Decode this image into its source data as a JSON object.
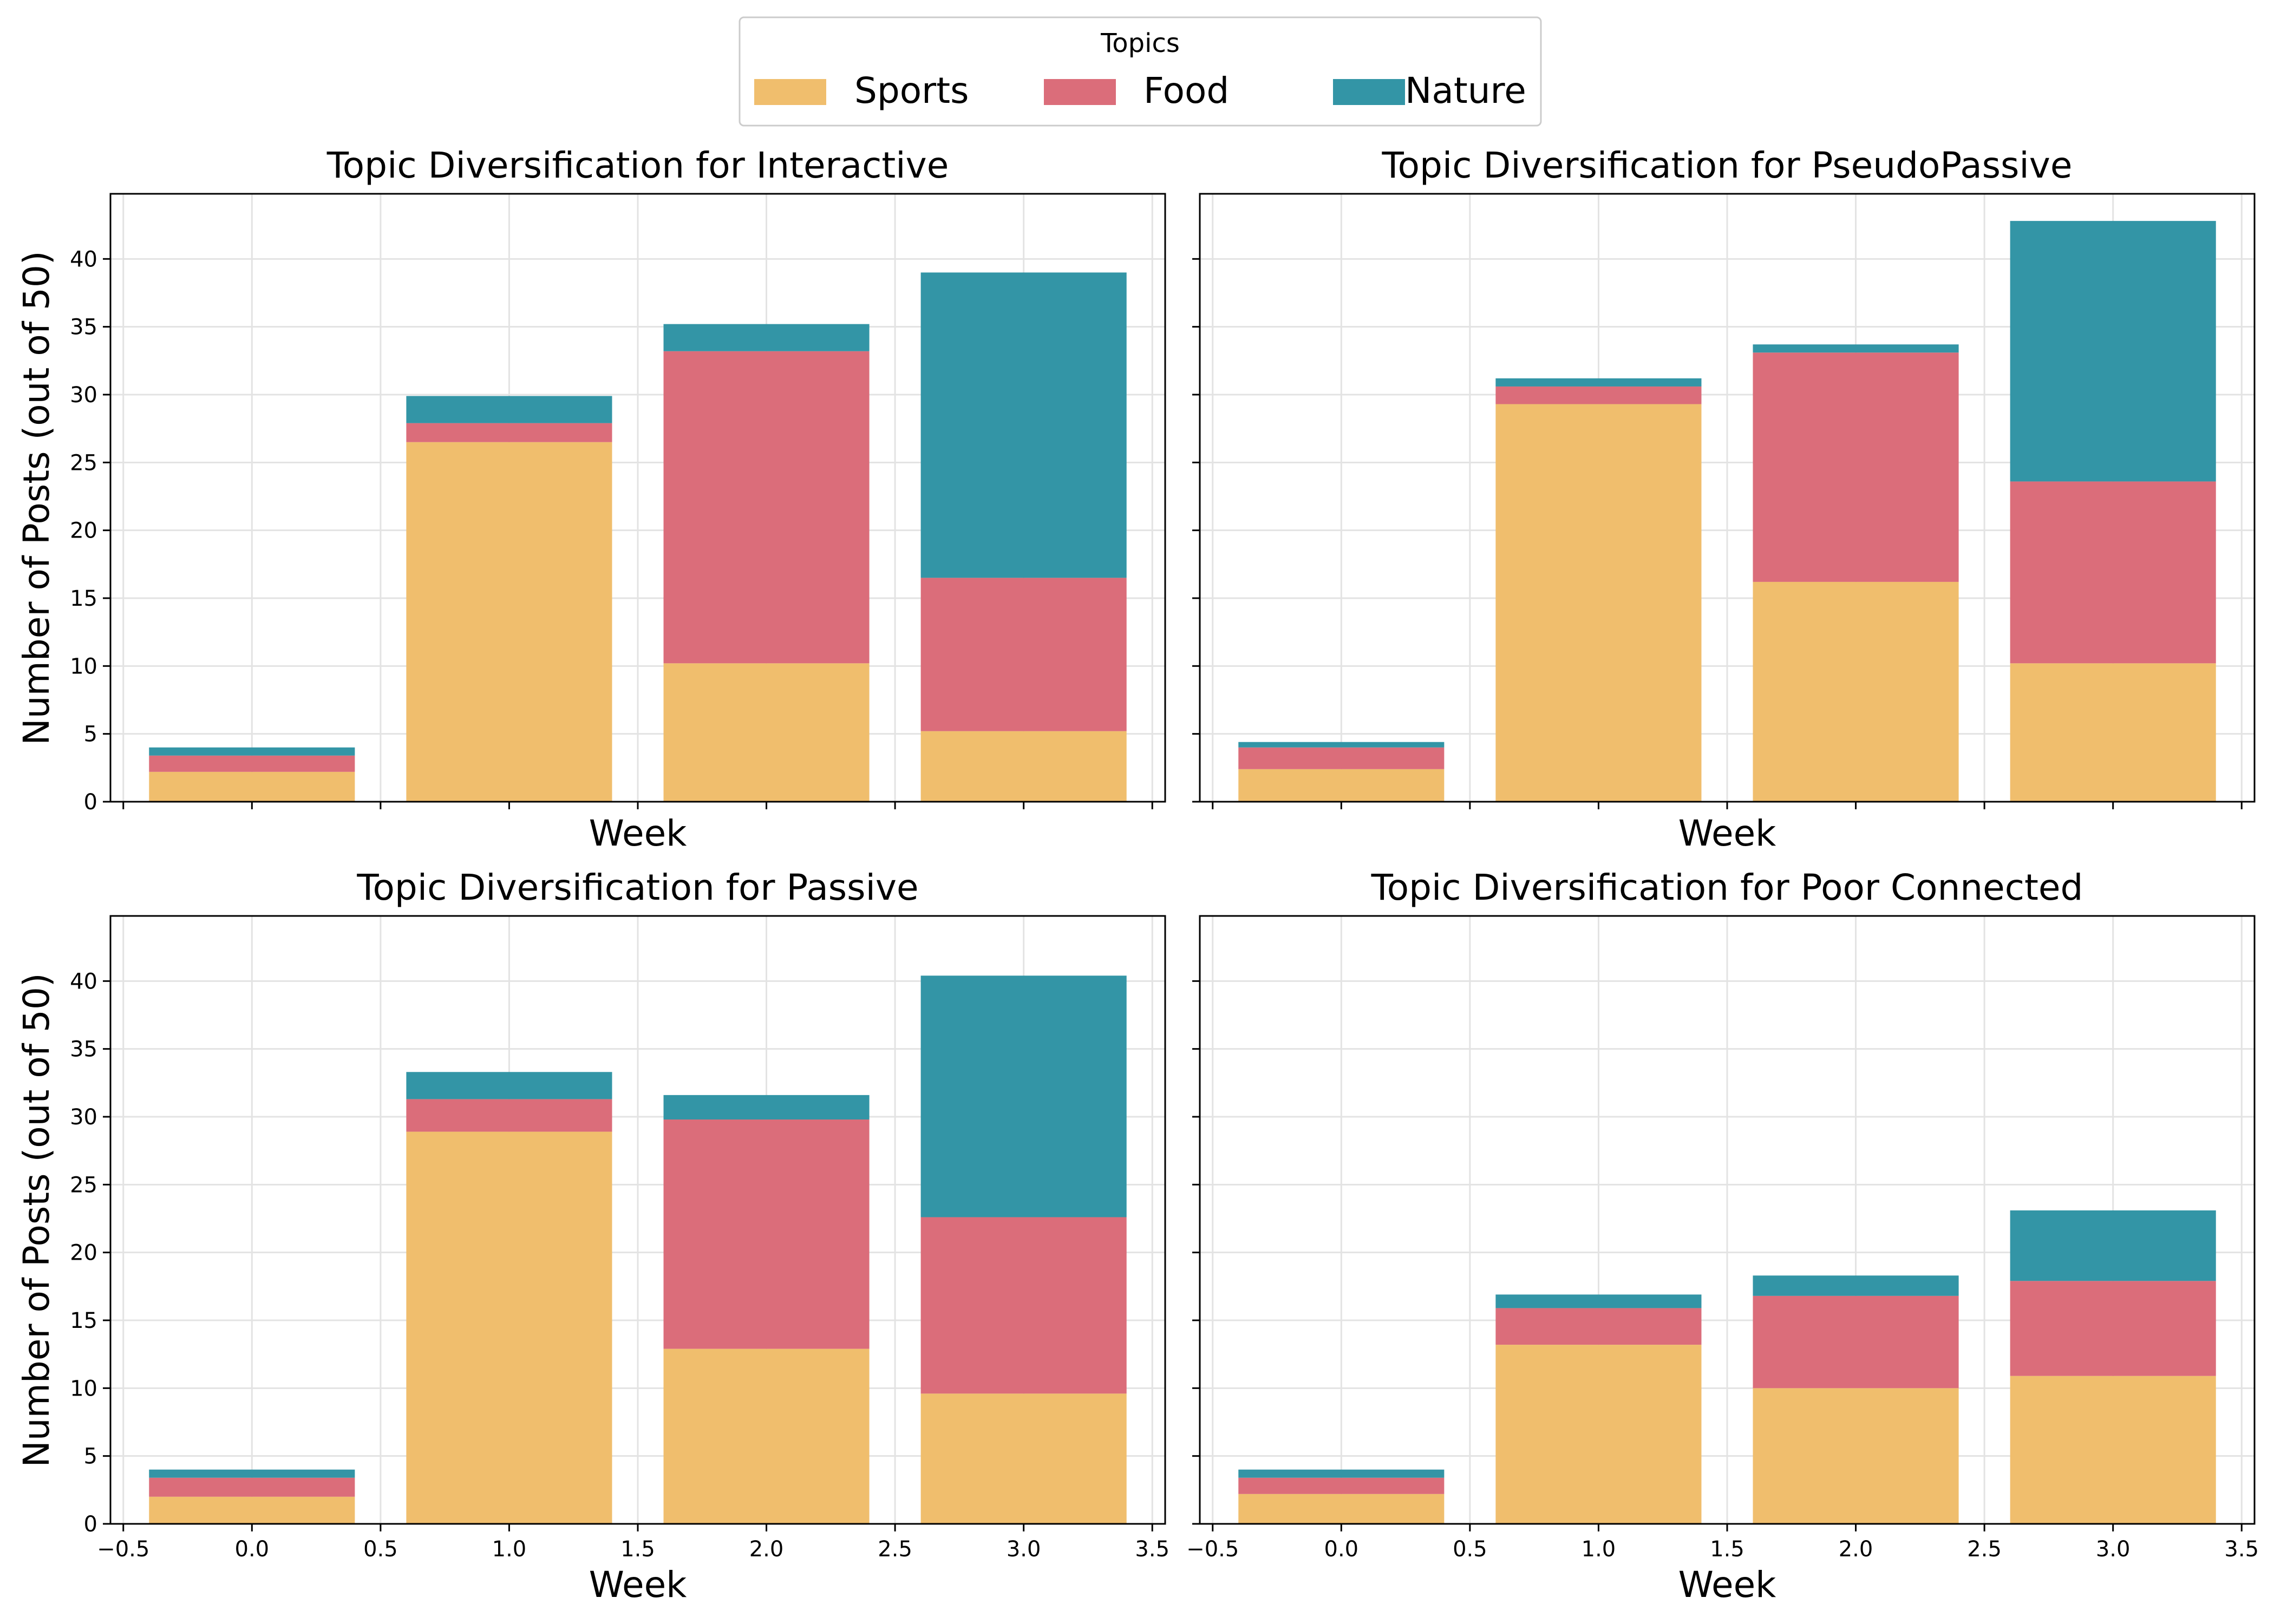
{
  "legend": {
    "title": "Topics",
    "entries": [
      {
        "label": "Sports",
        "color": "#f0be6d"
      },
      {
        "label": "Food",
        "color": "#db6d7a"
      },
      {
        "label": "Nature",
        "color": "#3395a6"
      }
    ]
  },
  "chart_data": [
    {
      "type": "bar",
      "stacked": true,
      "title": "Topic Diversification for Interactive",
      "xlabel": "Week",
      "ylabel": "Number of Posts (out of 50)",
      "x": [
        0,
        1,
        2,
        3
      ],
      "xlim": [
        -0.55,
        3.55
      ],
      "ylim": [
        0,
        44.8
      ],
      "xticks": [
        "−0.5",
        "0.0",
        "0.5",
        "1.0",
        "1.5",
        "2.0",
        "2.5",
        "3.0",
        "3.5"
      ],
      "yticks": [
        "0",
        "5",
        "10",
        "15",
        "20",
        "25",
        "30",
        "35",
        "40"
      ],
      "grid": true,
      "series": [
        {
          "name": "Sports",
          "values": [
            2.2,
            26.5,
            10.2,
            5.2
          ]
        },
        {
          "name": "Food",
          "values": [
            1.2,
            1.4,
            23.0,
            11.3
          ]
        },
        {
          "name": "Nature",
          "values": [
            0.6,
            2.0,
            2.0,
            22.5
          ]
        }
      ]
    },
    {
      "type": "bar",
      "stacked": true,
      "title": "Topic Diversification for PseudoPassive",
      "xlabel": "Week",
      "ylabel": "",
      "x": [
        0,
        1,
        2,
        3
      ],
      "xlim": [
        -0.55,
        3.55
      ],
      "ylim": [
        0,
        44.8
      ],
      "xticks": [
        "−0.5",
        "0.0",
        "0.5",
        "1.0",
        "1.5",
        "2.0",
        "2.5",
        "3.0",
        "3.5"
      ],
      "yticks": [
        "0",
        "5",
        "10",
        "15",
        "20",
        "25",
        "30",
        "35",
        "40"
      ],
      "grid": true,
      "series": [
        {
          "name": "Sports",
          "values": [
            2.4,
            29.3,
            16.2,
            10.2
          ]
        },
        {
          "name": "Food",
          "values": [
            1.6,
            1.3,
            16.9,
            13.4
          ]
        },
        {
          "name": "Nature",
          "values": [
            0.4,
            0.6,
            0.6,
            19.2
          ]
        }
      ]
    },
    {
      "type": "bar",
      "stacked": true,
      "title": "Topic Diversification for Passive",
      "xlabel": "Week",
      "ylabel": "Number of Posts (out of 50)",
      "x": [
        0,
        1,
        2,
        3
      ],
      "xlim": [
        -0.55,
        3.55
      ],
      "ylim": [
        0,
        44.8
      ],
      "xticks": [
        "−0.5",
        "0.0",
        "0.5",
        "1.0",
        "1.5",
        "2.0",
        "2.5",
        "3.0",
        "3.5"
      ],
      "yticks": [
        "0",
        "5",
        "10",
        "15",
        "20",
        "25",
        "30",
        "35",
        "40"
      ],
      "grid": true,
      "series": [
        {
          "name": "Sports",
          "values": [
            2.0,
            28.9,
            12.9,
            9.6
          ]
        },
        {
          "name": "Food",
          "values": [
            1.4,
            2.4,
            16.9,
            13.0
          ]
        },
        {
          "name": "Nature",
          "values": [
            0.6,
            2.0,
            1.8,
            17.8
          ]
        }
      ]
    },
    {
      "type": "bar",
      "stacked": true,
      "title": "Topic Diversification for Poor Connected",
      "xlabel": "Week",
      "ylabel": "",
      "x": [
        0,
        1,
        2,
        3
      ],
      "xlim": [
        -0.55,
        3.55
      ],
      "ylim": [
        0,
        44.8
      ],
      "xticks": [
        "−0.5",
        "0.0",
        "0.5",
        "1.0",
        "1.5",
        "2.0",
        "2.5",
        "3.0",
        "3.5"
      ],
      "yticks": [
        "0",
        "5",
        "10",
        "15",
        "20",
        "25",
        "30",
        "35",
        "40"
      ],
      "grid": true,
      "series": [
        {
          "name": "Sports",
          "values": [
            2.2,
            13.2,
            10.0,
            10.9
          ]
        },
        {
          "name": "Food",
          "values": [
            1.2,
            2.7,
            6.8,
            7.0
          ]
        },
        {
          "name": "Nature",
          "values": [
            0.6,
            1.0,
            1.5,
            5.2
          ]
        }
      ]
    }
  ]
}
